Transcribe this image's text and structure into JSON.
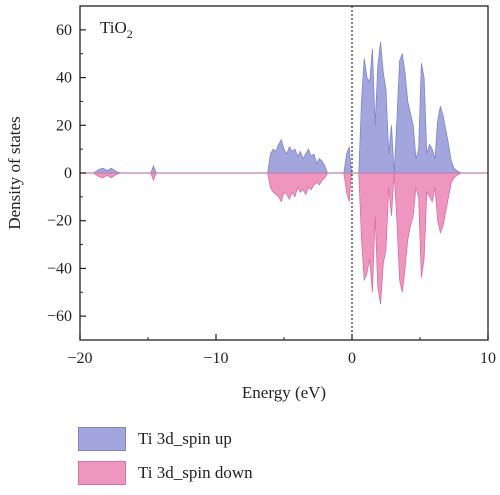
{
  "chart_data": {
    "type": "area",
    "annotation": "TiO2",
    "xlabel": "Energy (eV)",
    "ylabel": "Density of states",
    "xlim": [
      -20,
      10
    ],
    "ylim": [
      -70,
      70
    ],
    "xticks": [
      -20,
      -10,
      0,
      10
    ],
    "yticks": [
      -60,
      -40,
      -20,
      0,
      20,
      40,
      60
    ],
    "fermi_level": 0,
    "grid": false,
    "legend_position": "below",
    "series": [
      {
        "name": "Ti 3d_spin up",
        "color": "#a3a6dc",
        "edge": "#7f84c8",
        "x": [
          -19,
          -18.6,
          -18.3,
          -18.0,
          -17.7,
          -17.3,
          -17.0,
          -14.8,
          -14.6,
          -14.4,
          -6.2,
          -6.0,
          -5.8,
          -5.6,
          -5.4,
          -5.2,
          -5.0,
          -4.8,
          -4.6,
          -4.4,
          -4.2,
          -4.0,
          -3.8,
          -3.6,
          -3.4,
          -3.2,
          -3.0,
          -2.8,
          -2.6,
          -2.4,
          -2.2,
          -2.0,
          -1.8,
          -0.6,
          -0.4,
          -0.2,
          -0.05,
          0.5,
          0.7,
          0.9,
          1.1,
          1.3,
          1.5,
          1.7,
          1.9,
          2.1,
          2.3,
          2.5,
          2.7,
          2.9,
          3.1,
          3.3,
          3.5,
          3.7,
          3.9,
          4.1,
          4.3,
          4.5,
          4.7,
          4.9,
          5.1,
          5.3,
          5.5,
          5.7,
          5.9,
          6.1,
          6.3,
          6.5,
          6.7,
          6.9,
          7.1,
          7.3,
          7.5,
          7.7,
          8.0
        ],
        "values": [
          0,
          1.5,
          2,
          1,
          2,
          0.5,
          0,
          0,
          3,
          0,
          0,
          8,
          10,
          9,
          12,
          14,
          10,
          8,
          11,
          9,
          10,
          7,
          9,
          6,
          8,
          10,
          7,
          8,
          4,
          6,
          5,
          3,
          0,
          0,
          8,
          11,
          0,
          0,
          30,
          48,
          40,
          38,
          52,
          20,
          45,
          55,
          42,
          35,
          8,
          20,
          0,
          22,
          47,
          50,
          42,
          30,
          25,
          20,
          6,
          10,
          46,
          40,
          8,
          12,
          10,
          6,
          22,
          28,
          24,
          18,
          12,
          5,
          2,
          1,
          0
        ]
      },
      {
        "name": "Ti 3d_spin down",
        "color": "#ee96bf",
        "edge": "#d9709f",
        "x": [
          -19,
          -18.6,
          -18.3,
          -18.0,
          -17.7,
          -17.3,
          -17.0,
          -14.8,
          -14.6,
          -14.4,
          -6.2,
          -6.0,
          -5.8,
          -5.6,
          -5.4,
          -5.2,
          -5.0,
          -4.8,
          -4.6,
          -4.4,
          -4.2,
          -4.0,
          -3.8,
          -3.6,
          -3.4,
          -3.2,
          -3.0,
          -2.8,
          -2.6,
          -2.4,
          -2.2,
          -2.0,
          -1.8,
          -0.6,
          -0.4,
          -0.2,
          -0.05,
          0.5,
          0.7,
          0.9,
          1.1,
          1.3,
          1.5,
          1.7,
          1.9,
          2.1,
          2.3,
          2.5,
          2.7,
          2.9,
          3.1,
          3.3,
          3.5,
          3.7,
          3.9,
          4.1,
          4.3,
          4.5,
          4.7,
          4.9,
          5.1,
          5.3,
          5.5,
          5.7,
          5.9,
          6.1,
          6.3,
          6.5,
          6.7,
          6.9,
          7.1,
          7.3,
          7.5,
          7.7,
          8.0
        ],
        "values": [
          0,
          -1.5,
          -2,
          -1,
          -2,
          -0.5,
          0,
          0,
          -3,
          0,
          0,
          -6,
          -8,
          -9,
          -10,
          -12,
          -8,
          -9,
          -11,
          -8,
          -10,
          -6,
          -8,
          -7,
          -9,
          -6,
          -7,
          -5,
          -4,
          -5,
          -3,
          -2,
          0,
          0,
          -8,
          -12,
          0,
          0,
          -28,
          -45,
          -42,
          -36,
          -50,
          -18,
          -48,
          -55,
          -38,
          -32,
          -6,
          -18,
          0,
          -20,
          -45,
          -50,
          -40,
          -28,
          -22,
          -18,
          -6,
          -10,
          -44,
          -36,
          -8,
          -10,
          -12,
          -6,
          -20,
          -25,
          -22,
          -16,
          -10,
          -4,
          -2,
          -1,
          0
        ]
      }
    ]
  }
}
